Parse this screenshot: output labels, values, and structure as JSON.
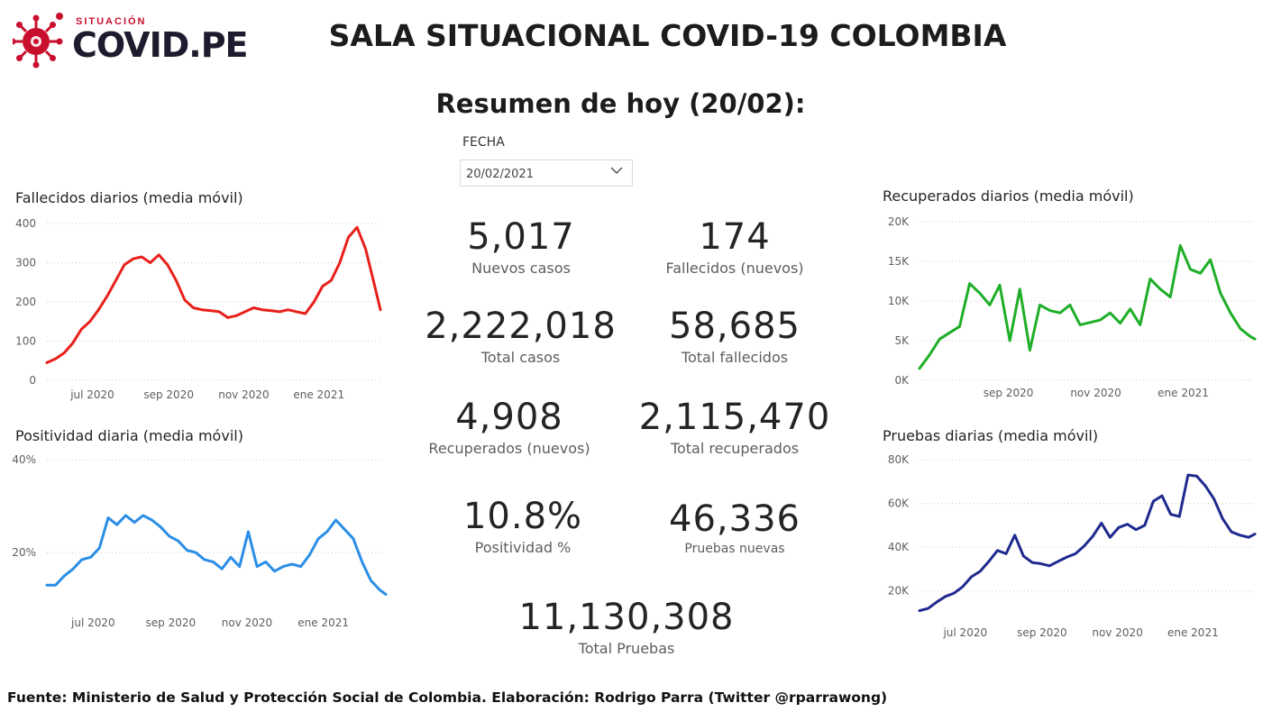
{
  "header": {
    "logo_small": "SITUACIÓN",
    "logo_big": "COVID.PE",
    "title": "SALA SITUACIONAL COVID-19 COLOMBIA",
    "summary": "Resumen de hoy (20/02):"
  },
  "filter": {
    "label": "FECHA",
    "value": "20/02/2021"
  },
  "kpis": [
    {
      "value": "5,017",
      "label": "Nuevos casos"
    },
    {
      "value": "174",
      "label": "Fallecidos (nuevos)"
    },
    {
      "value": "2,222,018",
      "label": "Total casos"
    },
    {
      "value": "58,685",
      "label": "Total fallecidos"
    },
    {
      "value": "4,908",
      "label": "Recuperados (nuevos)"
    },
    {
      "value": "2,115,470",
      "label": "Total recuperados"
    },
    {
      "value": "10.8%",
      "label": "Positividad %"
    },
    {
      "value": "46,336",
      "label": "Pruebas nuevas"
    },
    {
      "value": "11,130,308",
      "label": "Total Pruebas"
    }
  ],
  "footer": "Fuente: Ministerio de Salud y Protección Social de Colombia. Elaboración: Rodrigo Parra (Twitter @rparrawong)",
  "chart_data": [
    {
      "id": "fallecidos",
      "type": "line",
      "title": "Fallecidos diarios (media móvil)",
      "color": "#e8201a",
      "ylim": [
        0,
        400
      ],
      "yticks": [
        0,
        100,
        200,
        300,
        400
      ],
      "ytick_labels": [
        "0",
        "100",
        "200",
        "300",
        "400"
      ],
      "xlim": [
        "2020-05-25",
        "2021-02-20"
      ],
      "xticks": [
        "2020-07-01",
        "2020-09-01",
        "2020-11-01",
        "2021-01-01"
      ],
      "xtick_labels": [
        "jul 2020",
        "sep 2020",
        "nov 2020",
        "ene 2021"
      ],
      "grid": true,
      "series": [
        {
          "x": [
            "2020-05-25",
            "2020-06-01",
            "2020-06-08",
            "2020-06-15",
            "2020-06-22",
            "2020-06-29",
            "2020-07-06",
            "2020-07-13",
            "2020-07-20",
            "2020-07-27",
            "2020-08-03",
            "2020-08-10",
            "2020-08-17",
            "2020-08-24",
            "2020-08-31",
            "2020-09-07",
            "2020-09-14",
            "2020-09-21",
            "2020-09-28",
            "2020-10-05",
            "2020-10-12",
            "2020-10-19",
            "2020-10-26",
            "2020-11-02",
            "2020-11-09",
            "2020-11-16",
            "2020-11-23",
            "2020-11-30",
            "2020-12-07",
            "2020-12-14",
            "2020-12-21",
            "2020-12-28",
            "2021-01-04",
            "2021-01-11",
            "2021-01-18",
            "2021-01-25",
            "2021-02-01",
            "2021-02-08",
            "2021-02-15",
            "2021-02-20"
          ],
          "y": [
            45,
            55,
            70,
            95,
            130,
            150,
            180,
            215,
            255,
            295,
            310,
            315,
            300,
            320,
            295,
            255,
            205,
            185,
            180,
            178,
            175,
            160,
            165,
            175,
            185,
            180,
            178,
            175,
            180,
            175,
            170,
            200,
            240,
            255,
            300,
            365,
            390,
            335,
            245,
            180
          ]
        }
      ]
    },
    {
      "id": "positividad",
      "type": "line",
      "title": "Positividad diaria (media móvil)",
      "color": "#2b8ee6",
      "ylim": [
        8,
        40
      ],
      "yticks": [
        20,
        40
      ],
      "ytick_labels": [
        "20%",
        "40%"
      ],
      "xlim": [
        "2020-05-25",
        "2021-02-20"
      ],
      "xticks": [
        "2020-07-01",
        "2020-09-01",
        "2020-11-01",
        "2021-01-01"
      ],
      "xtick_labels": [
        "jul 2020",
        "sep 2020",
        "nov 2020",
        "ene 2021"
      ],
      "grid": true,
      "series": [
        {
          "x": [
            "2020-05-25",
            "2020-06-01",
            "2020-06-08",
            "2020-06-15",
            "2020-06-22",
            "2020-06-29",
            "2020-07-06",
            "2020-07-13",
            "2020-07-20",
            "2020-07-27",
            "2020-08-03",
            "2020-08-10",
            "2020-08-17",
            "2020-08-24",
            "2020-08-31",
            "2020-09-07",
            "2020-09-14",
            "2020-09-21",
            "2020-09-28",
            "2020-10-05",
            "2020-10-12",
            "2020-10-19",
            "2020-10-26",
            "2020-11-02",
            "2020-11-09",
            "2020-11-16",
            "2020-11-23",
            "2020-11-30",
            "2020-12-07",
            "2020-12-14",
            "2020-12-21",
            "2020-12-28",
            "2021-01-04",
            "2021-01-11",
            "2021-01-18",
            "2021-01-25",
            "2021-02-01",
            "2021-02-08",
            "2021-02-15",
            "2021-02-20"
          ],
          "y": [
            13,
            13,
            15,
            16.5,
            18.5,
            19,
            21,
            27.5,
            26,
            28,
            26.5,
            28,
            27,
            25.5,
            23.5,
            22.5,
            20.5,
            20,
            18.5,
            18,
            16.5,
            19,
            17,
            24.5,
            17,
            18,
            16,
            17,
            17.5,
            17,
            19.5,
            23,
            24.5,
            27,
            25,
            23,
            18,
            14,
            12,
            11
          ]
        }
      ]
    },
    {
      "id": "recuperados",
      "type": "line",
      "title": "Recuperados diarios (media móvil)",
      "color": "#1fae28",
      "ylim": [
        0,
        20000
      ],
      "yticks": [
        0,
        5000,
        10000,
        15000,
        20000
      ],
      "ytick_labels": [
        "0K",
        "5K",
        "10K",
        "15K",
        "20K"
      ],
      "xlim": [
        "2020-07-01",
        "2021-02-20"
      ],
      "xticks": [
        "2020-09-01",
        "2020-11-01",
        "2021-01-01"
      ],
      "xtick_labels": [
        "sep 2020",
        "nov 2020",
        "ene 2021"
      ],
      "grid": true,
      "series": [
        {
          "x": [
            "2020-07-01",
            "2020-07-08",
            "2020-07-15",
            "2020-07-22",
            "2020-07-29",
            "2020-08-05",
            "2020-08-12",
            "2020-08-19",
            "2020-08-26",
            "2020-09-02",
            "2020-09-09",
            "2020-09-16",
            "2020-09-23",
            "2020-09-30",
            "2020-10-07",
            "2020-10-14",
            "2020-10-21",
            "2020-10-28",
            "2020-11-04",
            "2020-11-11",
            "2020-11-18",
            "2020-11-25",
            "2020-12-02",
            "2020-12-09",
            "2020-12-16",
            "2020-12-23",
            "2020-12-30",
            "2021-01-06",
            "2021-01-13",
            "2021-01-20",
            "2021-01-27",
            "2021-02-03",
            "2021-02-10",
            "2021-02-17",
            "2021-02-20"
          ],
          "y": [
            1500,
            3200,
            5200,
            6000,
            6800,
            12200,
            11000,
            9500,
            12000,
            5000,
            11500,
            3800,
            9500,
            8800,
            8500,
            9500,
            7000,
            7300,
            7600,
            8500,
            7200,
            9000,
            7000,
            12800,
            11500,
            10500,
            17000,
            14000,
            13500,
            15200,
            11000,
            8500,
            6500,
            5500,
            5200
          ]
        }
      ]
    },
    {
      "id": "pruebas",
      "type": "line",
      "title": "Pruebas diarias (media móvil)",
      "color": "#1f2a8e",
      "ylim": [
        10000,
        80000
      ],
      "yticks": [
        20000,
        40000,
        60000,
        80000
      ],
      "ytick_labels": [
        "20K",
        "40K",
        "60K",
        "80K"
      ],
      "xlim": [
        "2020-05-25",
        "2021-02-20"
      ],
      "xticks": [
        "2020-07-01",
        "2020-09-01",
        "2020-11-01",
        "2021-01-01"
      ],
      "xtick_labels": [
        "jul 2020",
        "sep 2020",
        "nov 2020",
        "ene 2021"
      ],
      "grid": true,
      "series": [
        {
          "x": [
            "2020-05-25",
            "2020-06-01",
            "2020-06-08",
            "2020-06-15",
            "2020-06-22",
            "2020-06-29",
            "2020-07-06",
            "2020-07-13",
            "2020-07-20",
            "2020-07-27",
            "2020-08-03",
            "2020-08-10",
            "2020-08-17",
            "2020-08-24",
            "2020-08-31",
            "2020-09-07",
            "2020-09-14",
            "2020-09-21",
            "2020-09-28",
            "2020-10-05",
            "2020-10-12",
            "2020-10-19",
            "2020-10-26",
            "2020-11-02",
            "2020-11-09",
            "2020-11-16",
            "2020-11-23",
            "2020-11-30",
            "2020-12-07",
            "2020-12-14",
            "2020-12-21",
            "2020-12-28",
            "2021-01-04",
            "2021-01-11",
            "2021-01-18",
            "2021-01-25",
            "2021-02-01",
            "2021-02-08",
            "2021-02-15",
            "2021-02-20"
          ],
          "y": [
            11000,
            12000,
            15000,
            17500,
            19000,
            22000,
            26500,
            29000,
            33500,
            38500,
            37000,
            45500,
            36000,
            33000,
            32500,
            31500,
            33500,
            35500,
            37000,
            40500,
            45000,
            51000,
            44500,
            49000,
            50500,
            48000,
            50000,
            61000,
            63500,
            55000,
            54000,
            73000,
            72500,
            68000,
            62000,
            53000,
            47000,
            45500,
            44500,
            46000
          ]
        }
      ]
    }
  ]
}
